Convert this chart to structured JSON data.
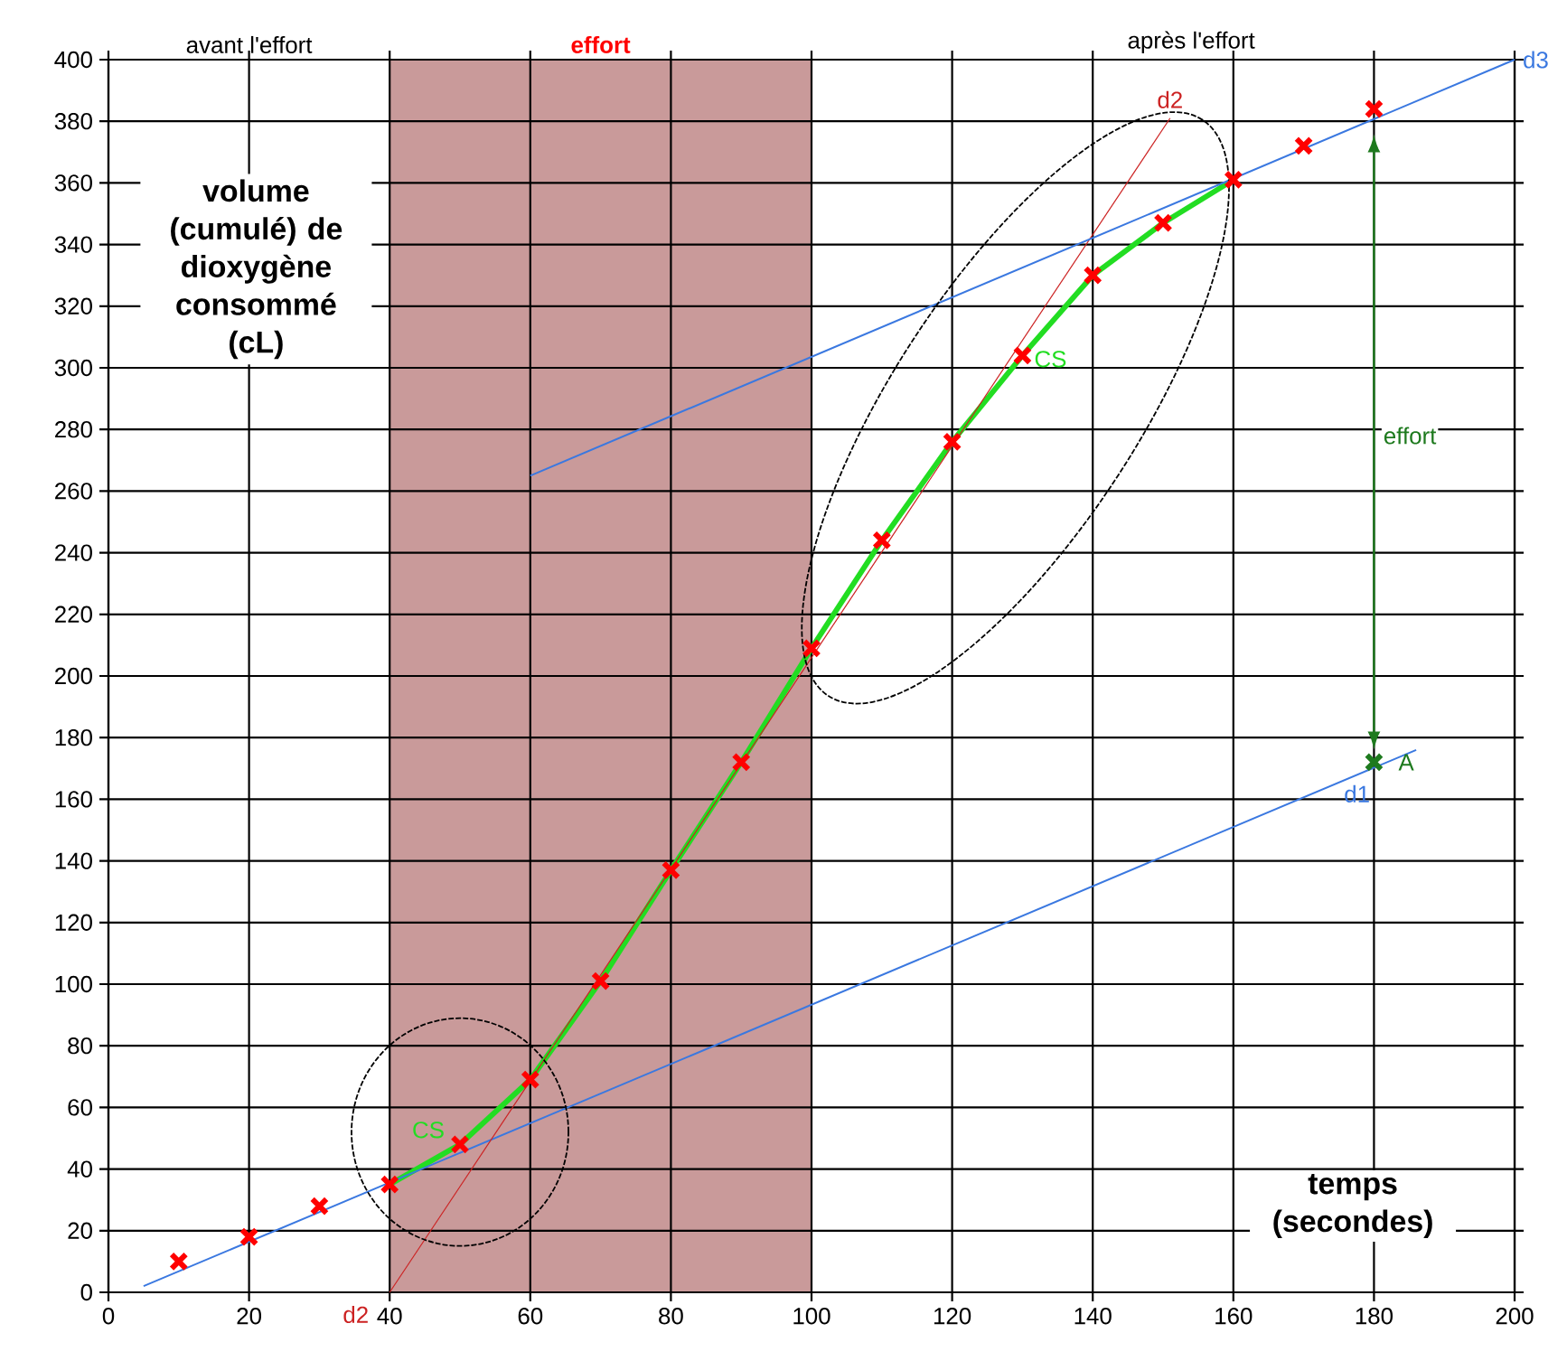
{
  "chart_data": {
    "type": "scatter",
    "xlabel": "temps (secondes)",
    "ylabel": "volume (cumulé) de dioxygène consommé (cL)",
    "xlim": [
      0,
      200
    ],
    "ylim": [
      0,
      400
    ],
    "xticks": [
      0,
      20,
      40,
      60,
      80,
      100,
      120,
      140,
      160,
      180,
      200
    ],
    "yticks": [
      0,
      20,
      40,
      60,
      80,
      100,
      120,
      140,
      160,
      180,
      200,
      220,
      240,
      260,
      280,
      300,
      320,
      340,
      360,
      380,
      400
    ],
    "grid": true,
    "bands": [
      {
        "axis": "x",
        "from": 40,
        "to": 100,
        "label": "effort",
        "color": "#c99a9a"
      }
    ],
    "annotations": [
      "avant l'effort",
      "après l'effort",
      "effort"
    ],
    "series": [
      {
        "color": "#ff0000",
        "marker": "cross",
        "x": [
          10,
          20,
          30,
          40,
          50,
          60,
          70,
          80,
          90,
          100,
          110,
          120,
          130,
          140,
          150,
          160,
          170,
          180
        ],
        "values": [
          10,
          18,
          28,
          35,
          48,
          69,
          101,
          137,
          172,
          209,
          244,
          276,
          304,
          330,
          347,
          361,
          372,
          384
        ]
      },
      {
        "type": "line",
        "name": "CS",
        "color": "#22dd22",
        "x": [
          40,
          50,
          60,
          70,
          80,
          90,
          100,
          110,
          120,
          130,
          140,
          150,
          160
        ],
        "values": [
          35,
          48,
          69,
          101,
          137,
          172,
          209,
          244,
          276,
          304,
          330,
          347,
          361
        ]
      },
      {
        "type": "line",
        "name": "d1",
        "color": "#3a78e0",
        "x": [
          5,
          186
        ],
        "values": [
          2,
          176
        ]
      },
      {
        "type": "line",
        "name": "d2",
        "color": "#cc2222",
        "x": [
          40,
          151
        ],
        "values": [
          0,
          381
        ]
      },
      {
        "type": "line",
        "name": "d3",
        "color": "#3a78e0",
        "x": [
          60,
          200
        ],
        "values": [
          265,
          400
        ]
      },
      {
        "name": "A",
        "color": "#1e7a1e",
        "marker": "cross",
        "x": [
          180
        ],
        "values": [
          172
        ]
      }
    ]
  }
}
